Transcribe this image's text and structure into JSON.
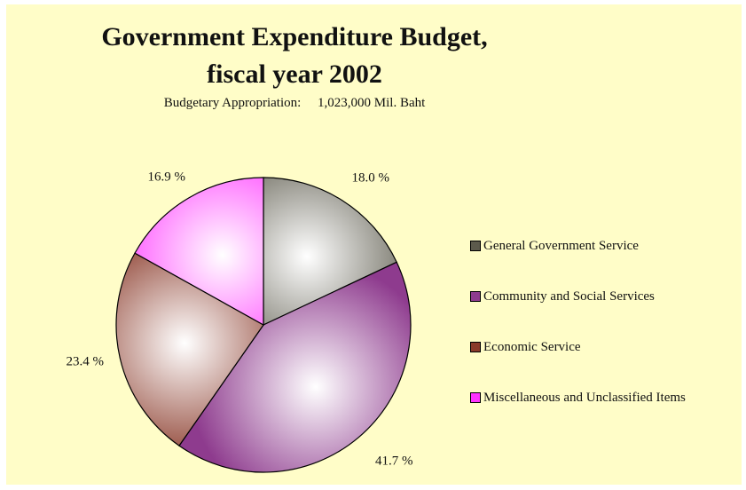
{
  "chart_data": {
    "type": "pie",
    "title_line1": "Government Expenditure Budget,",
    "title_line2": "fiscal year 2002",
    "subtitle": "Budgetary Appropriation:     1,023,000 Mil. Baht",
    "legend_position": "right",
    "slices": [
      {
        "name": "General Government Service",
        "value": 18.0,
        "label": "18.0 %",
        "color": "#5c5a4c"
      },
      {
        "name": "Community and Social Services",
        "value": 41.7,
        "label": "41.7 %",
        "color": "#8e3b8e"
      },
      {
        "name": "Economic Service",
        "value": 23.4,
        "label": "23.4 %",
        "color": "#8a3a2a"
      },
      {
        "name": "Miscellaneous and Unclassified Items",
        "value": 16.9,
        "label": "16.9 %",
        "color": "#ff33ff"
      }
    ]
  }
}
